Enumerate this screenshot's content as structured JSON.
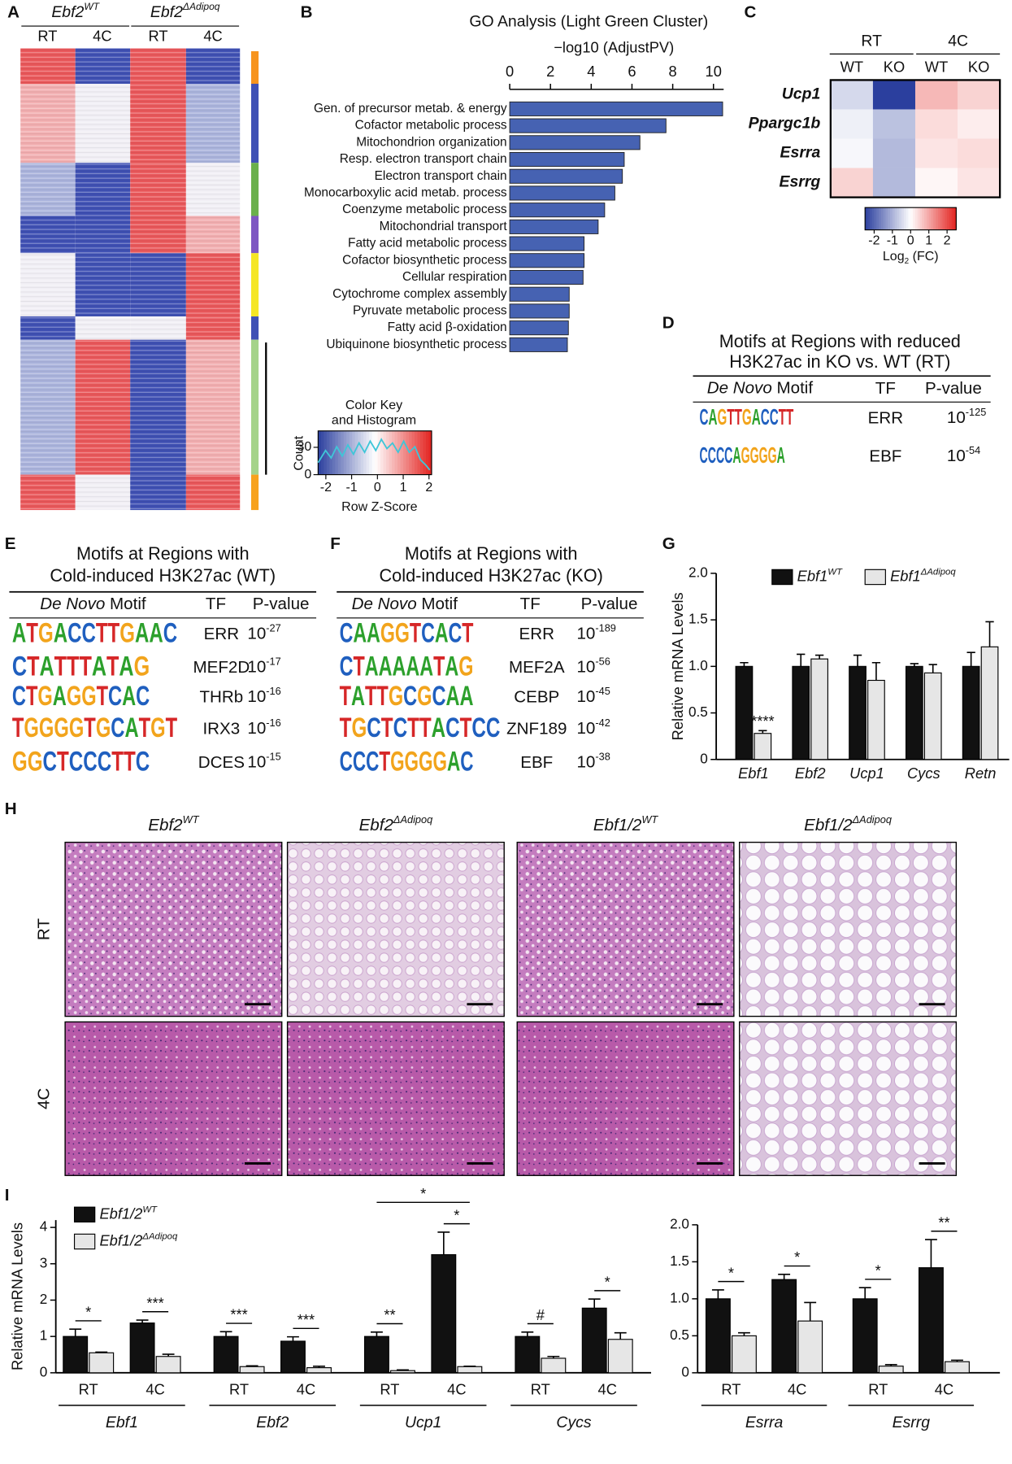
{
  "panel_labels": [
    "A",
    "B",
    "C",
    "D",
    "E",
    "F",
    "G",
    "H",
    "I"
  ],
  "panel_a": {
    "groups": [
      {
        "base": "Ebf2",
        "sup": "WT"
      },
      {
        "base": "Ebf2",
        "sup": "ΔAdipoq"
      }
    ],
    "columns": [
      "RT",
      "4C",
      "RT",
      "4C"
    ]
  },
  "color_key": {
    "title": [
      "Color Key",
      "and Histogram"
    ],
    "ylabel": "Count",
    "xlabel": "Row Z-Score",
    "xlim": [
      -2.3,
      2.1
    ],
    "xticks": [
      -2,
      -1,
      0,
      1,
      2
    ],
    "ylim": [
      0,
      48
    ],
    "yticks": [
      0,
      30
    ],
    "colors": [
      "#2b3f9e",
      "#ffffff",
      "#e3221f"
    ],
    "line_color": "#3fc6d8"
  },
  "chart_data": [
    {
      "type": "bar",
      "orientation": "horizontal",
      "title": "GO Analysis (Light Green Cluster)",
      "xlabel": "−log10 (AdjustPV)",
      "categories": [
        "Gen. of precursor metab. & energy",
        "Cofactor metabolic process",
        "Mitochondrion organization",
        "Resp. electron transport chain",
        "Electron transport chain",
        "Monocarboxylic acid metab. process",
        "Coenzyme metabolic process",
        "Mitochondrial transport",
        "Fatty acid metabolic process",
        "Cofactor biosynthetic process",
        "Cellular respiration",
        "Cytochrome complex assembly",
        "Pyruvate metabolic process",
        "Fatty acid β-oxidation",
        "Ubiquinone biosynthetic process"
      ],
      "values": [
        10.45,
        7.67,
        6.39,
        5.62,
        5.53,
        5.16,
        4.66,
        4.34,
        3.65,
        3.65,
        3.6,
        2.92,
        2.92,
        2.88,
        2.83
      ],
      "color": "#4662b2",
      "xlim": [
        0,
        10.5
      ],
      "xticks": [
        0,
        2,
        4,
        6,
        8,
        10
      ]
    },
    {
      "type": "heatmap",
      "column_groups": [
        "RT",
        "4C"
      ],
      "columns": [
        "WT",
        "KO",
        "WT",
        "KO"
      ],
      "rows": [
        "Ucp1",
        "Ppargc1b",
        "Esrra",
        "Esrrg"
      ],
      "values": [
        [
          -0.5,
          -2.5,
          0.8,
          0.5
        ],
        [
          -0.2,
          -0.8,
          0.4,
          0.2
        ],
        [
          -0.1,
          -0.9,
          0.3,
          0.4
        ],
        [
          0.5,
          -0.9,
          0.1,
          0.3
        ]
      ],
      "zlim": [
        -2.5,
        2.5
      ],
      "zticks": [
        -2,
        -1,
        0,
        1,
        2
      ],
      "colors": [
        "#2b3f9e",
        "#ffffff",
        "#e3221f"
      ],
      "colorbar_label": {
        "text": "Log",
        "sub": "2",
        "rest": " (FC)"
      }
    },
    {
      "type": "bar",
      "ylabel": "Relative mRNA Levels",
      "categories": [
        "Ebf1",
        "Ebf2",
        "Ucp1",
        "Cycs",
        "Retn"
      ],
      "ylim": [
        0,
        2
      ],
      "yticks": [
        0,
        0.5,
        {
          "value": 1,
          "label": "1.0"
        },
        1.5,
        {
          "value": 2,
          "label": "2.0"
        }
      ],
      "series": [
        {
          "name": "Ebf1",
          "superscript": "WT",
          "color": "#111111",
          "values": [
            1,
            1,
            1,
            1,
            1
          ],
          "errors": [
            0.04,
            0.13,
            0.12,
            0.03,
            0.15
          ]
        },
        {
          "name": "Ebf1",
          "superscript": "ΔAdipoq",
          "color": "#e6e6e6",
          "values": [
            0.28,
            1.08,
            0.85,
            0.93,
            1.21
          ],
          "errors": [
            0.03,
            0.04,
            0.19,
            0.09,
            0.27
          ]
        }
      ],
      "significance": [
        "****",
        null,
        null,
        null,
        null
      ]
    },
    {
      "type": "bar",
      "ylabel": "Relative mRNA Levels",
      "categories": [
        "RT",
        "4C",
        "RT",
        "4C",
        "RT",
        "4C",
        "RT",
        "4C"
      ],
      "groups": [
        "Ebf1",
        "Ebf2",
        "Ucp1",
        "Cycs"
      ],
      "ylim": [
        0,
        4.2
      ],
      "yticks": [
        0,
        1,
        2,
        3,
        4
      ],
      "series": [
        {
          "name": "Ebf1/2",
          "superscript": "WT",
          "color": "#111111",
          "values": [
            1,
            1.37,
            1,
            0.87,
            1,
            3.25,
            1,
            1.78
          ],
          "errors": [
            0.2,
            0.08,
            0.13,
            0.12,
            0.12,
            0.62,
            0.12,
            0.25
          ]
        },
        {
          "name": "Ebf1/2",
          "superscript": "ΔAdipoq",
          "color": "#e6e6e6",
          "values": [
            0.55,
            0.45,
            0.17,
            0.14,
            0.06,
            0.17,
            0.4,
            0.92
          ],
          "errors": [
            0.02,
            0.06,
            0.02,
            0.04,
            0.02,
            0.01,
            0.05,
            0.18
          ]
        }
      ],
      "significance": [
        "*",
        "***",
        "***",
        "***",
        "**",
        "*",
        "#",
        "*"
      ],
      "group_significance": [
        null,
        null,
        "*",
        null
      ]
    },
    {
      "type": "bar",
      "categories": [
        "RT",
        "4C",
        "RT",
        "4C"
      ],
      "groups": [
        "Esrra",
        "Esrrg"
      ],
      "ylim": [
        0,
        2
      ],
      "yticks": [
        0,
        0.5,
        {
          "value": 1,
          "label": "1.0"
        },
        1.5,
        {
          "value": 2,
          "label": "2.0"
        }
      ],
      "series": [
        {
          "color": "#111111",
          "values": [
            1,
            1.26,
            1,
            1.42
          ],
          "errors": [
            0.12,
            0.07,
            0.15,
            0.38
          ]
        },
        {
          "color": "#e6e6e6",
          "values": [
            0.5,
            0.7,
            0.09,
            0.15
          ],
          "errors": [
            0.04,
            0.25,
            0.02,
            0.02
          ]
        }
      ],
      "significance": [
        "*",
        "*",
        "*",
        "**"
      ]
    }
  ],
  "motif_tables": [
    {
      "title": [
        "Motifs at Regions with reduced",
        "H3K27ac in KO vs. WT (RT)"
      ],
      "motif_header": {
        "italic": "De Novo",
        "rest": " Motif"
      },
      "tf_header": "TF",
      "p_header": "P-value",
      "rows": [
        {
          "motif": "CAGTTGACCTT",
          "tf": "ERR",
          "p_base": "10",
          "p_exp": "-125"
        },
        {
          "motif": "CCCCAGGGGA",
          "tf": "EBF",
          "p_base": "10",
          "p_exp": "-54"
        }
      ]
    },
    {
      "title": [
        "Motifs at Regions with",
        "Cold-induced H3K27ac (WT)"
      ],
      "motif_header": {
        "italic": "De Novo",
        "rest": " Motif"
      },
      "tf_header": "TF",
      "p_header": "P-value",
      "rows": [
        {
          "motif": "ATGACCTTGAAC",
          "tf": "ERR",
          "p_base": "10",
          "p_exp": "-27"
        },
        {
          "motif": "CTATTTATAG",
          "tf": "MEF2D",
          "p_base": "10",
          "p_exp": "-17"
        },
        {
          "motif": "CTGAGGTCAC",
          "tf": "THRb",
          "p_base": "10",
          "p_exp": "-16"
        },
        {
          "motif": "TGGGGTGCATGT",
          "tf": "IRX3",
          "p_base": "10",
          "p_exp": "-16"
        },
        {
          "motif": "GGCTCCCTTC",
          "tf": "DCES",
          "p_base": "10",
          "p_exp": "-15"
        }
      ]
    },
    {
      "title": [
        "Motifs at Regions with",
        "Cold-induced H3K27ac (KO)"
      ],
      "motif_header": {
        "italic": "De Novo",
        "rest": " Motif"
      },
      "tf_header": "TF",
      "p_header": "P-value",
      "rows": [
        {
          "motif": "CAAGGTCACT",
          "tf": "ERR",
          "p_base": "10",
          "p_exp": "-189"
        },
        {
          "motif": "CTAAAAATAG",
          "tf": "MEF2A",
          "p_base": "10",
          "p_exp": "-56"
        },
        {
          "motif": "TATTGCGCAA",
          "tf": "CEBP",
          "p_base": "10",
          "p_exp": "-45"
        },
        {
          "motif": "TGCTCTTACTCC",
          "tf": "ZNF189",
          "p_base": "10",
          "p_exp": "-42"
        },
        {
          "motif": "CCCTGGGGAC",
          "tf": "EBF",
          "p_base": "10",
          "p_exp": "-38"
        }
      ]
    }
  ],
  "panel_h": {
    "columns": [
      {
        "base": "Ebf2",
        "sup": "WT"
      },
      {
        "base": "Ebf2",
        "sup": "ΔAdipoq"
      },
      {
        "base": "Ebf1/2",
        "sup": "WT"
      },
      {
        "base": "Ebf1/2",
        "sup": "ΔAdipoq"
      }
    ],
    "rows": [
      "RT",
      "4C"
    ]
  }
}
